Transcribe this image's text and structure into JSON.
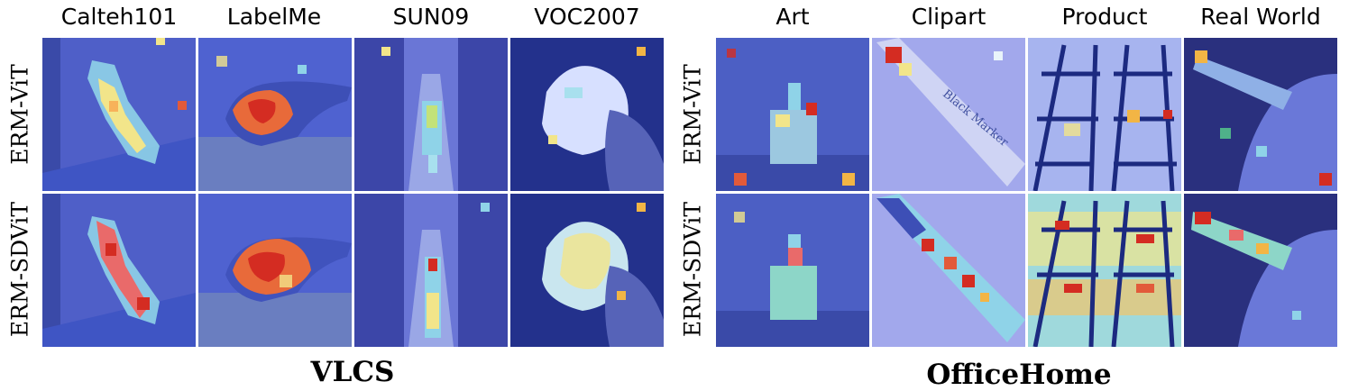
{
  "vlcs": {
    "title": "VLCS",
    "columns": [
      "Calteh101",
      "LabelMe",
      "SUN09",
      "VOC2007"
    ],
    "rows": [
      "ERM-ViT",
      "ERM-SDViT"
    ]
  },
  "officehome": {
    "title": "OfficeHome",
    "columns": [
      "Art",
      "Clipart",
      "Product",
      "Real World"
    ],
    "rows": [
      "ERM-ViT",
      "ERM-SDViT"
    ]
  },
  "clipart_text": "Black Marker"
}
